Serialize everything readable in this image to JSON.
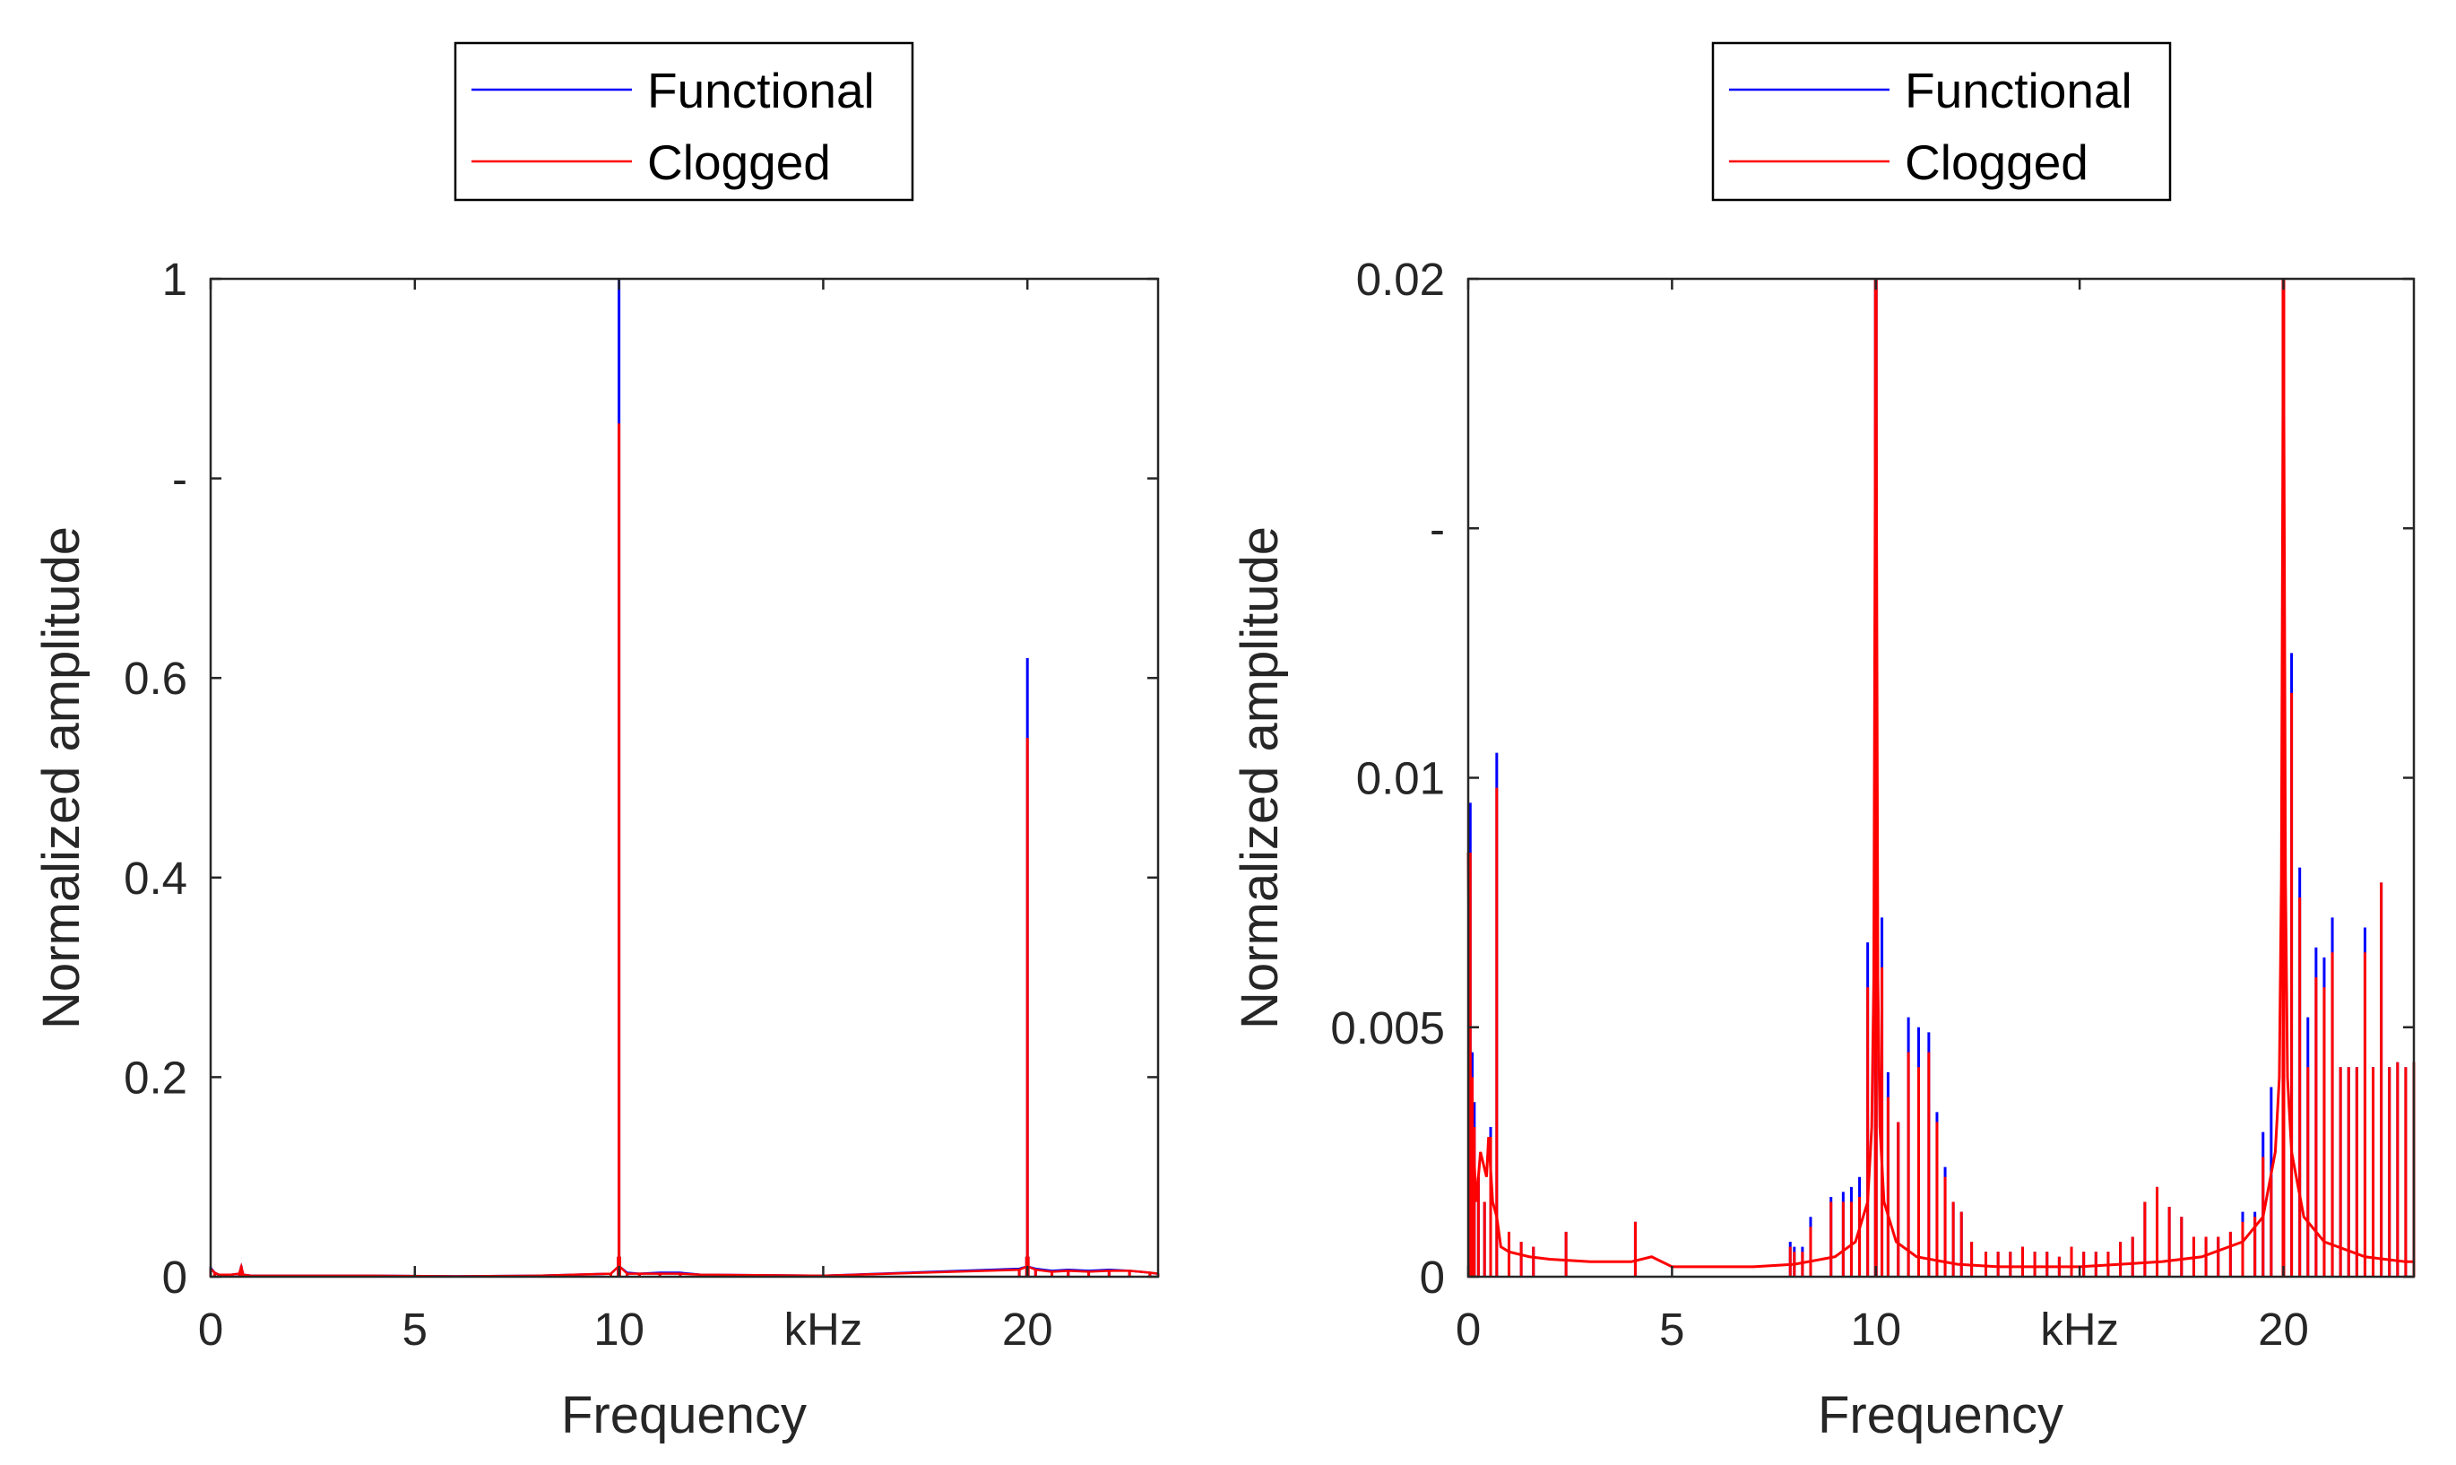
{
  "chart_data": [
    {
      "type": "line",
      "xlabel": "Frequency",
      "ylabel": "Normalized amplitude",
      "xlim": [
        0,
        23.2
      ],
      "ylim": [
        0,
        1
      ],
      "grid": false,
      "x_ticks": [
        {
          "value": 0,
          "label": "0"
        },
        {
          "value": 5,
          "label": "5"
        },
        {
          "value": 10,
          "label": "10"
        },
        {
          "value": 15,
          "label": "kHz"
        },
        {
          "value": 20,
          "label": "20"
        }
      ],
      "y_ticks": [
        {
          "value": 0,
          "label": "0"
        },
        {
          "value": 0.2,
          "label": "0.2"
        },
        {
          "value": 0.4,
          "label": "0.4"
        },
        {
          "value": 0.6,
          "label": "0.6"
        },
        {
          "value": 0.8,
          "label": "-"
        },
        {
          "value": 1,
          "label": "1"
        }
      ],
      "legend": {
        "position": "top-center",
        "entries": [
          "Functional",
          "Clogged"
        ]
      },
      "series": [
        {
          "name": "Functional",
          "color": "#0000ff",
          "x": [
            0,
            0.1,
            0.2,
            0.3,
            0.5,
            0.7,
            0.75,
            0.8,
            1.0,
            2.0,
            4.0,
            6.0,
            8.0,
            9.8,
            9.98,
            10.0,
            10.02,
            10.2,
            10.5,
            11.0,
            11.5,
            12.0,
            15.0,
            19.8,
            19.98,
            20.0,
            20.02,
            20.2,
            20.6,
            21.0,
            21.5,
            22.0,
            22.5,
            23.0,
            23.2
          ],
          "y": [
            0.009,
            0.004,
            0.002,
            0.002,
            0.002,
            0.003,
            0.011,
            0.002,
            0.001,
            0.001,
            0.001,
            0.0005,
            0.001,
            0.003,
            0.02,
            1.0,
            0.02,
            0.004,
            0.003,
            0.004,
            0.004,
            0.002,
            0.001,
            0.008,
            0.02,
            0.62,
            0.02,
            0.008,
            0.006,
            0.007,
            0.006,
            0.007,
            0.006,
            0.004,
            0.003
          ]
        },
        {
          "name": "Clogged",
          "color": "#ff0000",
          "x": [
            0,
            0.1,
            0.2,
            0.3,
            0.5,
            0.7,
            0.75,
            0.8,
            1.0,
            2.0,
            4.0,
            6.0,
            8.0,
            9.8,
            9.98,
            10.0,
            10.02,
            10.2,
            10.5,
            11.0,
            11.5,
            12.0,
            15.0,
            19.8,
            19.98,
            20.0,
            20.02,
            20.2,
            20.6,
            21.0,
            21.5,
            22.0,
            22.5,
            23.0,
            23.2
          ],
          "y": [
            0.008,
            0.004,
            0.002,
            0.002,
            0.002,
            0.003,
            0.01,
            0.002,
            0.001,
            0.001,
            0.001,
            0.0005,
            0.001,
            0.003,
            0.02,
            0.855,
            0.02,
            0.003,
            0.003,
            0.003,
            0.003,
            0.002,
            0.001,
            0.007,
            0.02,
            0.54,
            0.02,
            0.007,
            0.005,
            0.006,
            0.005,
            0.006,
            0.006,
            0.004,
            0.003
          ]
        }
      ]
    },
    {
      "type": "line",
      "xlabel": "Frequency",
      "ylabel": "Normalized amplitude",
      "xlim": [
        0,
        23.2
      ],
      "ylim": [
        0,
        0.02
      ],
      "grid": false,
      "x_ticks": [
        {
          "value": 0,
          "label": "0"
        },
        {
          "value": 5,
          "label": "5"
        },
        {
          "value": 10,
          "label": "10"
        },
        {
          "value": 15,
          "label": "kHz"
        },
        {
          "value": 20,
          "label": "20"
        }
      ],
      "y_ticks": [
        {
          "value": 0,
          "label": "0"
        },
        {
          "value": 0.005,
          "label": "0.005"
        },
        {
          "value": 0.01,
          "label": "0.01"
        },
        {
          "value": 0.015,
          "label": "-"
        },
        {
          "value": 0.02,
          "label": "0.02"
        }
      ],
      "legend": {
        "position": "top-center",
        "entries": [
          "Functional",
          "Clogged"
        ]
      },
      "background": {
        "x": [
          0,
          0.05,
          0.1,
          0.2,
          0.3,
          0.45,
          0.5,
          0.6,
          0.7,
          0.8,
          1.0,
          1.5,
          2.0,
          3.0,
          4.0,
          4.5,
          5.0,
          6.0,
          7.0,
          8.0,
          9.0,
          9.5,
          9.8,
          9.9,
          9.95,
          10.0,
          10.05,
          10.1,
          10.2,
          10.5,
          11.0,
          12.0,
          13.0,
          14.0,
          15.0,
          16.0,
          17.0,
          18.0,
          19.0,
          19.5,
          19.8,
          19.9,
          19.95,
          20.0,
          20.05,
          20.1,
          20.2,
          20.5,
          21.0,
          22.0,
          23.0,
          23.2
        ],
        "y": [
          0.0085,
          0.004,
          0.003,
          0.0015,
          0.0025,
          0.002,
          0.0028,
          0.0015,
          0.0012,
          0.0006,
          0.0005,
          0.0004,
          0.00035,
          0.0003,
          0.0003,
          0.0004,
          0.0002,
          0.0002,
          0.0002,
          0.00025,
          0.0004,
          0.0007,
          0.0015,
          0.003,
          0.006,
          0.02,
          0.006,
          0.003,
          0.0015,
          0.0007,
          0.0004,
          0.00025,
          0.0002,
          0.0002,
          0.0002,
          0.00025,
          0.0003,
          0.0004,
          0.0007,
          0.0012,
          0.0025,
          0.004,
          0.008,
          0.02,
          0.008,
          0.004,
          0.0025,
          0.0012,
          0.0007,
          0.0004,
          0.0003,
          0.0003
        ]
      },
      "series": [
        {
          "name": "Functional",
          "color": "#0000ff",
          "spikes": {
            "x": [
              0.05,
              0.1,
              0.15,
              0.25,
              0.4,
              0.55,
              0.7,
              1.0,
              1.3,
              1.6,
              2.4,
              4.1,
              7.9,
              8.0,
              8.2,
              8.4,
              8.9,
              9.2,
              9.4,
              9.6,
              9.8,
              10.15,
              10.3,
              10.55,
              10.8,
              11.05,
              11.3,
              11.5,
              11.7,
              11.9,
              12.1,
              12.35,
              12.7,
              13.0,
              13.3,
              13.6,
              13.9,
              14.2,
              14.5,
              14.8,
              15.1,
              15.4,
              15.7,
              16.0,
              16.3,
              16.6,
              16.9,
              17.2,
              17.5,
              17.8,
              18.1,
              18.4,
              18.7,
              19.0,
              19.3,
              19.5,
              19.7,
              20.2,
              20.4,
              20.6,
              20.8,
              21.0,
              21.2,
              21.4,
              21.6,
              21.8,
              22.0,
              22.2,
              22.4,
              22.6,
              22.8,
              23.0,
              23.2
            ],
            "y": [
              0.0095,
              0.0045,
              0.0035,
              0.002,
              0.0015,
              0.003,
              0.0105,
              0.0009,
              0.0007,
              0.0006,
              0.0009,
              0.0011,
              0.0007,
              0.0006,
              0.0006,
              0.0012,
              0.0016,
              0.0017,
              0.0018,
              0.002,
              0.0067,
              0.0072,
              0.0041,
              0.0031,
              0.0052,
              0.005,
              0.0049,
              0.0033,
              0.0022,
              0.0015,
              0.0013,
              0.0007,
              0.0005,
              0.0005,
              0.0005,
              0.0006,
              0.0005,
              0.0005,
              0.0004,
              0.0006,
              0.0005,
              0.0005,
              0.0005,
              0.0007,
              0.0008,
              0.0015,
              0.0018,
              0.0014,
              0.0012,
              0.0008,
              0.0008,
              0.0008,
              0.0009,
              0.0013,
              0.0013,
              0.0029,
              0.0038,
              0.0125,
              0.0082,
              0.0052,
              0.0066,
              0.0064,
              0.0072,
              0.0042,
              0.0042,
              0.0042,
              0.007,
              0.0042,
              0.0079,
              0.0042,
              0.0043,
              0.0042,
              0.0043
            ]
          },
          "x": [
            0.05,
            0.1,
            0.15,
            0.25,
            0.4,
            0.55,
            0.7,
            1.0,
            1.3,
            1.6,
            2.4,
            4.1,
            7.9,
            8.0,
            8.2,
            8.4,
            8.9,
            9.2,
            9.4,
            9.6,
            9.8,
            10.0,
            10.15,
            10.3,
            10.55,
            10.8,
            11.05,
            11.3,
            11.5,
            11.7,
            11.9,
            12.1,
            12.35,
            12.7,
            13.0,
            13.3,
            13.6,
            13.9,
            14.2,
            14.5,
            14.8,
            15.1,
            15.4,
            15.7,
            16.0,
            16.3,
            16.6,
            16.9,
            17.2,
            17.5,
            17.8,
            18.1,
            18.4,
            18.7,
            19.0,
            19.3,
            19.5,
            19.7,
            19.8,
            20.0,
            20.2,
            20.4,
            20.6,
            20.8,
            21.0,
            21.2,
            21.4,
            21.6,
            21.8,
            22.0,
            22.2,
            22.4,
            22.6,
            22.8,
            23.0,
            23.2
          ],
          "y": [
            0.0095,
            0.0045,
            0.0035,
            0.002,
            0.0015,
            0.003,
            0.0105,
            0.0009,
            0.0007,
            0.0006,
            0.0009,
            0.0011,
            0.0007,
            0.0006,
            0.0006,
            0.0012,
            0.0016,
            0.0017,
            0.0018,
            0.002,
            0.0067,
            0.02,
            0.0072,
            0.0041,
            0.0031,
            0.0052,
            0.005,
            0.0049,
            0.0033,
            0.0022,
            0.0015,
            0.0013,
            0.0007,
            0.0005,
            0.0005,
            0.0005,
            0.0006,
            0.0005,
            0.0005,
            0.0004,
            0.0006,
            0.0005,
            0.0005,
            0.0005,
            0.0007,
            0.0008,
            0.0015,
            0.0018,
            0.0014,
            0.0012,
            0.0008,
            0.0008,
            0.0008,
            0.0009,
            0.0013,
            0.0013,
            0.0029,
            0.0038,
            0.0133,
            0.02,
            0.0125,
            0.0082,
            0.0052,
            0.0066,
            0.0064,
            0.0072,
            0.0042,
            0.0042,
            0.0042,
            0.007,
            0.0042,
            0.0079,
            0.0042,
            0.0043,
            0.0042,
            0.0043
          ]
        },
        {
          "name": "Clogged",
          "color": "#ff0000",
          "spikes": {
            "x": [
              0.05,
              0.1,
              0.15,
              0.25,
              0.4,
              0.55,
              0.7,
              1.0,
              1.3,
              1.6,
              2.4,
              4.1,
              7.9,
              8.0,
              8.2,
              8.4,
              8.9,
              9.2,
              9.4,
              9.6,
              9.8,
              10.15,
              10.3,
              10.55,
              10.8,
              11.05,
              11.3,
              11.5,
              11.7,
              11.9,
              12.1,
              12.35,
              12.7,
              13.0,
              13.3,
              13.6,
              13.9,
              14.2,
              14.5,
              14.8,
              15.1,
              15.4,
              15.7,
              16.0,
              16.3,
              16.6,
              16.9,
              17.2,
              17.5,
              17.8,
              18.1,
              18.4,
              18.7,
              19.0,
              19.3,
              19.5,
              19.7,
              20.2,
              20.4,
              20.6,
              20.8,
              21.0,
              21.2,
              21.4,
              21.6,
              21.8,
              22.0,
              22.2,
              22.4,
              22.6,
              22.8,
              23.0,
              23.2
            ],
            "y": [
              0.0085,
              0.004,
              0.003,
              0.002,
              0.0015,
              0.0028,
              0.0098,
              0.0009,
              0.0007,
              0.0006,
              0.0009,
              0.0011,
              0.0006,
              0.0005,
              0.0005,
              0.001,
              0.0015,
              0.0015,
              0.0015,
              0.0016,
              0.0058,
              0.0062,
              0.0036,
              0.0031,
              0.0045,
              0.0042,
              0.0045,
              0.0031,
              0.002,
              0.0015,
              0.0013,
              0.0007,
              0.0005,
              0.0005,
              0.0005,
              0.0006,
              0.0005,
              0.0005,
              0.0004,
              0.0006,
              0.0005,
              0.0005,
              0.0005,
              0.0007,
              0.0008,
              0.0015,
              0.0018,
              0.0014,
              0.0012,
              0.0008,
              0.0008,
              0.0008,
              0.0009,
              0.0011,
              0.0012,
              0.0024,
              0.002,
              0.0117,
              0.0076,
              0.0042,
              0.006,
              0.0058,
              0.0065,
              0.0042,
              0.0042,
              0.0042,
              0.0065,
              0.0042,
              0.0079,
              0.0042,
              0.0043,
              0.0042,
              0.0043
            ]
          },
          "x": [
            0.05,
            0.1,
            0.15,
            0.25,
            0.4,
            0.55,
            0.7,
            1.0,
            1.3,
            1.6,
            2.4,
            4.1,
            7.9,
            8.0,
            8.2,
            8.4,
            8.9,
            9.2,
            9.4,
            9.6,
            9.8,
            10.0,
            10.15,
            10.3,
            10.55,
            10.8,
            11.05,
            11.3,
            11.5,
            11.7,
            11.9,
            12.1,
            12.35,
            12.7,
            13.0,
            13.3,
            13.6,
            13.9,
            14.2,
            14.5,
            14.8,
            15.1,
            15.4,
            15.7,
            16.0,
            16.3,
            16.6,
            16.9,
            17.2,
            17.5,
            17.8,
            18.1,
            18.4,
            18.7,
            19.0,
            19.3,
            19.5,
            19.7,
            19.8,
            20.0,
            20.2,
            20.4,
            20.6,
            20.8,
            21.0,
            21.2,
            21.4,
            21.6,
            21.8,
            22.0,
            22.2,
            22.4,
            22.6,
            22.8,
            23.0,
            23.2
          ],
          "y": [
            0.0085,
            0.004,
            0.003,
            0.002,
            0.0015,
            0.0028,
            0.0098,
            0.0009,
            0.0007,
            0.0006,
            0.0009,
            0.0011,
            0.0006,
            0.0005,
            0.0005,
            0.001,
            0.0015,
            0.0015,
            0.0015,
            0.0016,
            0.0058,
            0.02,
            0.0062,
            0.0036,
            0.0031,
            0.0045,
            0.0042,
            0.0045,
            0.0031,
            0.002,
            0.0015,
            0.0013,
            0.0007,
            0.0005,
            0.0005,
            0.0005,
            0.0006,
            0.0005,
            0.0005,
            0.0004,
            0.0006,
            0.0005,
            0.0005,
            0.0005,
            0.0007,
            0.0008,
            0.0015,
            0.0018,
            0.0014,
            0.0012,
            0.0008,
            0.0008,
            0.0008,
            0.0009,
            0.0011,
            0.0012,
            0.0024,
            0.002,
            0.0103,
            0.02,
            0.0117,
            0.0076,
            0.0042,
            0.006,
            0.0058,
            0.0065,
            0.0042,
            0.0042,
            0.0042,
            0.0065,
            0.0042,
            0.0079,
            0.0042,
            0.0043,
            0.0042,
            0.0043
          ]
        }
      ]
    }
  ]
}
